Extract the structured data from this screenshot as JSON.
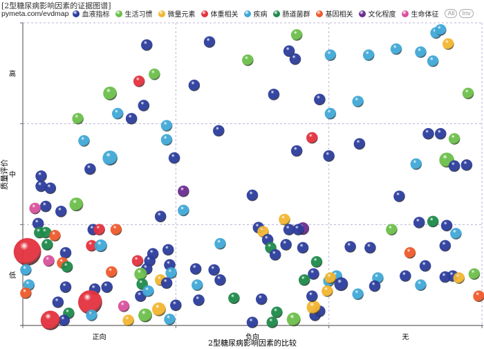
{
  "header": {
    "title": "[2型糖尿病影响因素的证据图谱]",
    "site": "pymeta.com/evdmap",
    "all_label": "All",
    "inv_label": "Inv"
  },
  "chart_data": {
    "type": "scatter",
    "subtype": "bubble evidence map",
    "xlabel": "2型糖尿病影响因素的比较",
    "ylabel": "质量评价",
    "x_categories": [
      "正向",
      "负向",
      "无"
    ],
    "y_categories": [
      "低",
      "中",
      "高"
    ],
    "xlim": [
      0,
      3
    ],
    "ylim": [
      0,
      3
    ],
    "grid": true,
    "legend_position": "top",
    "groups": [
      {
        "name": "血液指标",
        "color": "#2c3d9c"
      },
      {
        "name": "生活习惯",
        "color": "#6cbf4b"
      },
      {
        "name": "微量元素",
        "color": "#f2b530"
      },
      {
        "name": "体重相关",
        "color": "#e3323e"
      },
      {
        "name": "疾病",
        "color": "#40a8d6"
      },
      {
        "name": "肠道菌群",
        "color": "#1e8a4b"
      },
      {
        "name": "基因相关",
        "color": "#ee5a2b"
      },
      {
        "name": "文化程度",
        "color": "#6b2d90"
      },
      {
        "name": "生命体征",
        "color": "#d8519c"
      }
    ],
    "point_fields": [
      "x",
      "y",
      "group",
      "size"
    ],
    "points": [
      [
        0.81,
        2.78,
        0,
        1
      ],
      [
        1.22,
        2.81,
        0,
        1
      ],
      [
        1.79,
        2.88,
        1,
        1
      ],
      [
        1.74,
        2.72,
        0,
        1
      ],
      [
        1.78,
        2.64,
        0,
        1
      ],
      [
        1.47,
        2.63,
        1,
        1
      ],
      [
        2.01,
        2.68,
        4,
        1
      ],
      [
        2.26,
        2.68,
        4,
        1
      ],
      [
        2.44,
        2.74,
        4,
        1
      ],
      [
        2.6,
        2.71,
        4,
        1
      ],
      [
        2.7,
        2.9,
        4,
        1
      ],
      [
        2.73,
        2.93,
        4,
        1
      ],
      [
        2.78,
        2.79,
        2,
        1
      ],
      [
        2.68,
        2.62,
        4,
        1
      ],
      [
        0.86,
        2.49,
        1,
        1
      ],
      [
        0.76,
        2.42,
        3,
        1
      ],
      [
        1.12,
        2.38,
        0,
        1
      ],
      [
        0.57,
        2.3,
        1,
        1.2
      ],
      [
        1.64,
        2.29,
        0,
        1
      ],
      [
        1.94,
        2.24,
        0,
        1
      ],
      [
        2.19,
        2.22,
        4,
        1
      ],
      [
        2.01,
        2.1,
        4,
        1
      ],
      [
        2.91,
        2.3,
        1,
        1
      ],
      [
        0.79,
        2.18,
        0,
        1
      ],
      [
        0.62,
        2.1,
        4,
        1
      ],
      [
        0.71,
        2.05,
        0,
        1
      ],
      [
        0.36,
        2.05,
        1,
        1
      ],
      [
        0.94,
        1.98,
        4,
        1
      ],
      [
        1.28,
        1.93,
        0,
        1
      ],
      [
        0.94,
        1.84,
        4,
        1
      ],
      [
        0.4,
        1.83,
        4,
        1
      ],
      [
        1.79,
        1.73,
        0,
        1
      ],
      [
        1.89,
        1.86,
        3,
        1
      ],
      [
        2.2,
        1.8,
        0,
        1
      ],
      [
        2.0,
        1.68,
        0,
        1
      ],
      [
        2.65,
        1.9,
        0,
        1
      ],
      [
        2.73,
        1.9,
        0,
        1
      ],
      [
        2.82,
        1.85,
        1,
        1
      ],
      [
        0.99,
        1.66,
        0,
        1
      ],
      [
        0.57,
        1.66,
        4,
        1.3
      ],
      [
        0.44,
        1.55,
        0,
        1
      ],
      [
        2.57,
        1.6,
        4,
        1
      ],
      [
        2.77,
        1.64,
        1,
        1.3
      ],
      [
        2.82,
        1.58,
        0,
        1
      ],
      [
        2.9,
        1.59,
        0,
        1
      ],
      [
        0.12,
        1.48,
        0,
        1
      ],
      [
        0.12,
        1.38,
        0,
        1
      ],
      [
        0.18,
        1.36,
        0,
        1
      ],
      [
        0.15,
        1.18,
        0,
        1
      ],
      [
        0.35,
        1.2,
        1,
        1.2
      ],
      [
        0.25,
        1.13,
        0,
        1
      ],
      [
        0.08,
        1.16,
        8,
        1
      ],
      [
        1.05,
        1.33,
        7,
        1
      ],
      [
        1.5,
        1.29,
        0,
        1
      ],
      [
        1.05,
        1.14,
        4,
        1
      ],
      [
        0.9,
        1.08,
        0,
        1
      ],
      [
        2.46,
        1.28,
        0,
        1
      ],
      [
        0.1,
        1.01,
        0,
        1
      ],
      [
        0.46,
        0.95,
        0,
        1
      ],
      [
        0.5,
        0.95,
        3,
        1
      ],
      [
        0.61,
        0.95,
        6,
        1
      ],
      [
        0.11,
        0.92,
        5,
        1
      ],
      [
        0.15,
        0.92,
        5,
        1
      ],
      [
        0.21,
        0.89,
        6,
        1
      ],
      [
        0.16,
        0.8,
        5,
        1
      ],
      [
        0.45,
        0.79,
        3,
        1
      ],
      [
        0.51,
        0.79,
        4,
        1.1
      ],
      [
        0.28,
        0.72,
        0,
        1
      ],
      [
        0.03,
        0.73,
        3,
        2.4
      ],
      [
        1.71,
        1.05,
        2,
        1
      ],
      [
        1.54,
        0.97,
        0,
        1
      ],
      [
        1.57,
        0.93,
        2,
        1
      ],
      [
        1.6,
        0.85,
        0,
        1
      ],
      [
        1.62,
        0.77,
        5,
        1
      ],
      [
        1.65,
        0.7,
        0,
        1
      ],
      [
        1.74,
        0.95,
        0,
        1
      ],
      [
        1.83,
        0.96,
        7,
        1.1
      ],
      [
        1.8,
        0.95,
        0,
        1
      ],
      [
        1.72,
        0.8,
        0,
        1
      ],
      [
        1.83,
        0.77,
        0,
        1
      ],
      [
        1.29,
        0.81,
        4,
        1
      ],
      [
        2.41,
        0.95,
        1,
        1
      ],
      [
        2.59,
        1.02,
        0,
        1
      ],
      [
        2.68,
        1.03,
        5,
        1
      ],
      [
        2.77,
        0.99,
        0,
        1
      ],
      [
        2.83,
        0.91,
        4,
        1
      ],
      [
        2.14,
        0.78,
        0,
        1
      ],
      [
        2.27,
        0.77,
        0,
        1
      ],
      [
        2.53,
        0.72,
        6,
        1
      ],
      [
        2.76,
        0.79,
        0,
        1
      ],
      [
        0.85,
        0.71,
        0,
        1
      ],
      [
        0.83,
        0.64,
        0,
        1
      ],
      [
        0.95,
        0.75,
        0,
        1
      ],
      [
        0.96,
        0.6,
        0,
        1
      ],
      [
        0.81,
        0.56,
        0,
        1
      ],
      [
        0.17,
        0.64,
        8,
        1
      ],
      [
        0.26,
        0.62,
        6,
        1
      ],
      [
        0.29,
        0.58,
        5,
        1
      ],
      [
        0.75,
        0.64,
        3,
        1
      ],
      [
        0.58,
        0.53,
        6,
        1
      ],
      [
        0.77,
        0.51,
        1,
        1.1
      ],
      [
        0.78,
        0.41,
        5,
        1
      ],
      [
        0.9,
        0.45,
        2,
        1
      ],
      [
        0.94,
        0.42,
        0,
        1
      ],
      [
        0.97,
        0.52,
        4,
        1
      ],
      [
        0.02,
        0.55,
        4,
        1
      ],
      [
        0.04,
        0.4,
        4,
        1
      ],
      [
        0.02,
        0.32,
        6,
        1
      ],
      [
        0.28,
        0.38,
        0,
        1
      ],
      [
        0.47,
        0.36,
        0,
        1
      ],
      [
        0.55,
        0.38,
        0,
        1
      ],
      [
        1.13,
        0.56,
        0,
        1
      ],
      [
        1.25,
        0.55,
        0,
        1
      ],
      [
        1.29,
        0.45,
        0,
        1
      ],
      [
        1.14,
        0.4,
        4,
        1
      ],
      [
        1.9,
        0.51,
        0,
        1
      ],
      [
        1.92,
        0.63,
        5,
        1
      ],
      [
        1.84,
        0.45,
        5,
        1
      ],
      [
        2.05,
        0.49,
        4,
        1
      ],
      [
        2.0,
        0.44,
        4,
        1
      ],
      [
        2.01,
        0.47,
        2,
        1
      ],
      [
        2.08,
        0.41,
        0,
        1.2
      ],
      [
        1.99,
        0.34,
        2,
        1
      ],
      [
        2.32,
        0.47,
        4,
        1
      ],
      [
        2.5,
        0.49,
        0,
        1
      ],
      [
        2.63,
        0.59,
        0,
        1
      ],
      [
        2.76,
        0.48,
        0,
        1
      ],
      [
        2.81,
        0.49,
        0,
        1
      ],
      [
        2.85,
        0.47,
        2,
        1
      ],
      [
        2.95,
        0.51,
        1,
        1
      ],
      [
        2.6,
        0.4,
        4,
        1
      ],
      [
        2.19,
        0.31,
        4,
        1
      ],
      [
        2.98,
        0.29,
        6,
        1
      ],
      [
        2.3,
        0.39,
        0,
        1
      ],
      [
        1.38,
        0.27,
        5,
        1
      ],
      [
        1.56,
        0.26,
        0,
        1
      ],
      [
        1.15,
        0.25,
        0,
        1
      ],
      [
        0.77,
        0.29,
        0,
        1
      ],
      [
        0.82,
        0.34,
        4,
        1
      ],
      [
        0.23,
        0.23,
        0,
        1
      ],
      [
        0.44,
        0.23,
        3,
        2.1
      ],
      [
        0.66,
        0.19,
        8,
        1
      ],
      [
        0.69,
        0.05,
        2,
        1
      ],
      [
        0.8,
        0.1,
        1,
        1.2
      ],
      [
        0.89,
        0.16,
        2,
        1.2
      ],
      [
        1.0,
        0.2,
        0,
        1
      ],
      [
        0.96,
        0.06,
        4,
        1
      ],
      [
        0.45,
        0.1,
        4,
        1
      ],
      [
        0.3,
        0.12,
        5,
        1
      ],
      [
        0.27,
        0.05,
        0,
        1
      ],
      [
        0.18,
        0.05,
        3,
        1.7
      ],
      [
        1.5,
        0.03,
        0,
        1
      ],
      [
        1.66,
        0.13,
        5,
        1
      ],
      [
        1.63,
        0.03,
        5,
        1
      ],
      [
        1.77,
        0.06,
        1,
        1.2
      ],
      [
        1.91,
        0.1,
        0,
        1
      ],
      [
        1.94,
        0.14,
        0,
        1
      ],
      [
        1.9,
        0.18,
        2,
        1.2
      ],
      [
        1.89,
        0.29,
        0,
        1
      ]
    ]
  }
}
